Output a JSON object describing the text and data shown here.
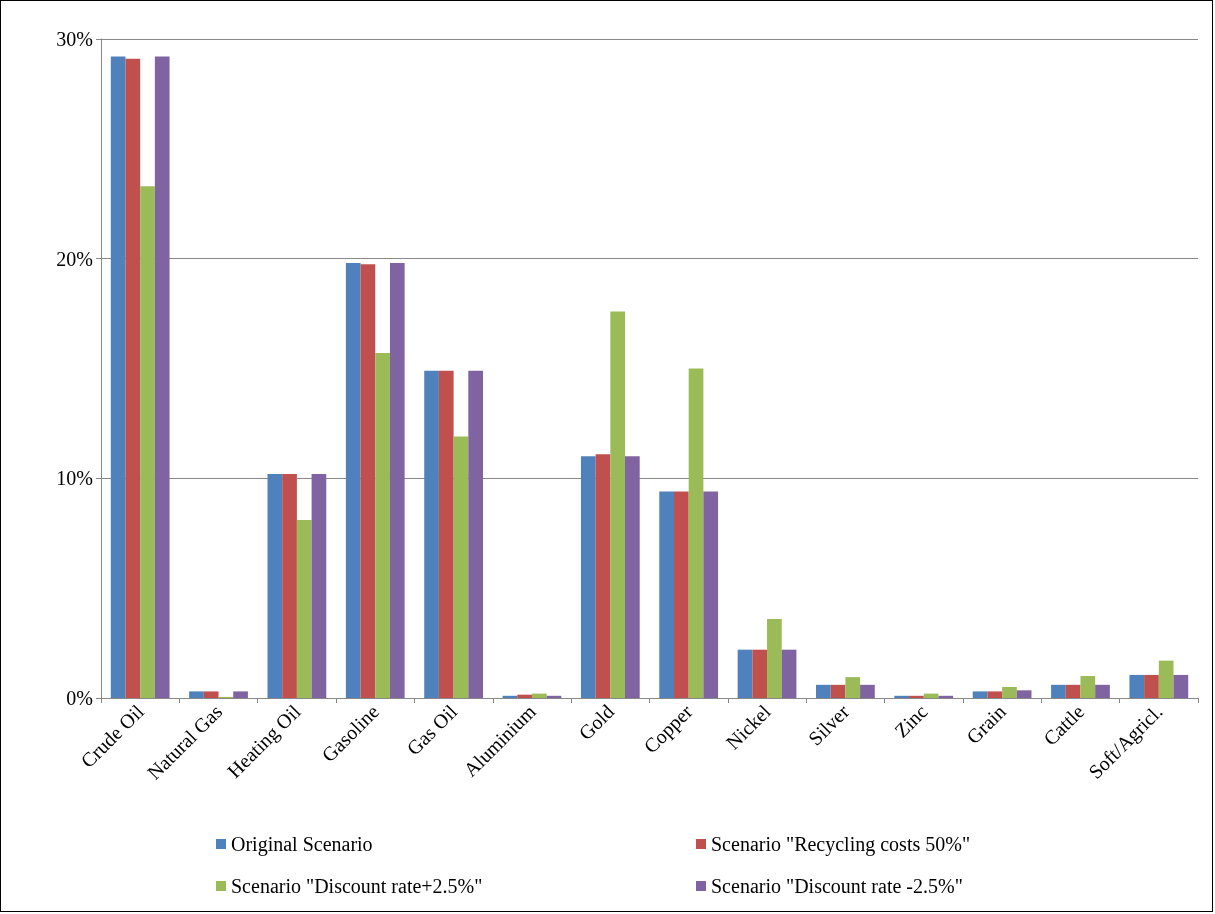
{
  "chart_data": {
    "type": "bar",
    "categories": [
      "Crude Oil",
      "Natural Gas",
      "Heating Oil",
      "Gasoline",
      "Gas Oil",
      "Aluminium",
      "Gold",
      "Copper",
      "Nickel",
      "Silver",
      "Zinc",
      "Grain",
      "Cattle",
      "Soft/Agricl."
    ],
    "series": [
      {
        "name": "Original Scenario",
        "color": "#4f81bd",
        "values": [
          29.2,
          0.3,
          10.2,
          19.8,
          14.9,
          0.1,
          11.0,
          9.4,
          2.2,
          0.6,
          0.1,
          0.3,
          0.6,
          1.05
        ]
      },
      {
        "name": "Scenario \"Recycling costs 50%\"",
        "color": "#c0504d",
        "values": [
          29.1,
          0.3,
          10.2,
          19.75,
          14.9,
          0.15,
          11.1,
          9.4,
          2.2,
          0.6,
          0.1,
          0.3,
          0.6,
          1.05
        ]
      },
      {
        "name": "Scenario \"Discount rate+2.5%\"",
        "color": "#9bbb59",
        "values": [
          23.3,
          0.05,
          8.1,
          15.7,
          11.9,
          0.2,
          17.6,
          15.0,
          3.6,
          0.95,
          0.2,
          0.5,
          1.0,
          1.7
        ]
      },
      {
        "name": "Scenario \"Discount rate -2.5%\"",
        "color": "#8064a2",
        "values": [
          29.2,
          0.3,
          10.2,
          19.8,
          14.9,
          0.1,
          11.0,
          9.4,
          2.2,
          0.6,
          0.1,
          0.35,
          0.6,
          1.05
        ]
      }
    ],
    "ylim": [
      0,
      30
    ],
    "yticks": [
      {
        "value": 0,
        "label": "0%"
      },
      {
        "value": 10,
        "label": "10%"
      },
      {
        "value": 20,
        "label": "20%"
      },
      {
        "value": 30,
        "label": "30%"
      }
    ],
    "grid": "y",
    "legend": "bottom"
  }
}
